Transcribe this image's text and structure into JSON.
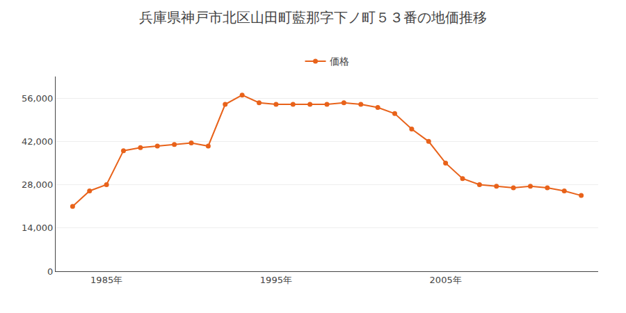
{
  "chart_data": {
    "type": "line",
    "title": "兵庫県神戸市北区山田町藍那字下ノ町５３番の地価推移",
    "x": [
      1983,
      1984,
      1985,
      1986,
      1987,
      1988,
      1989,
      1990,
      1991,
      1992,
      1993,
      1994,
      1995,
      1996,
      1997,
      1998,
      1999,
      2000,
      2001,
      2002,
      2003,
      2004,
      2005,
      2006,
      2007,
      2008,
      2009,
      2010,
      2011,
      2012,
      2013
    ],
    "series": [
      {
        "name": "価格",
        "color": "#E8621A",
        "marker": "circle",
        "values": [
          21000,
          26000,
          28000,
          39000,
          40000,
          40500,
          41000,
          41500,
          40500,
          54000,
          57000,
          54500,
          54000,
          54000,
          54000,
          54000,
          54500,
          54000,
          53000,
          51000,
          46000,
          42000,
          35000,
          30000,
          28000,
          27500,
          27000,
          27500,
          27000,
          26000,
          24500
        ]
      }
    ],
    "xlim": [
      1982,
      2014
    ],
    "xticks": [
      {
        "value": 1985,
        "label": "1985年"
      },
      {
        "value": 1995,
        "label": "1995年"
      },
      {
        "value": 2005,
        "label": "2005年"
      }
    ],
    "ylim": [
      0,
      63000
    ],
    "yticks": [
      0,
      {
        "value": 14000,
        "label": "14,000"
      },
      {
        "value": 28000,
        "label": "28,000"
      },
      {
        "value": 42000,
        "label": "42,000"
      },
      {
        "value": 56000,
        "label": "56,000"
      }
    ],
    "grid": "y",
    "legend": "top"
  }
}
